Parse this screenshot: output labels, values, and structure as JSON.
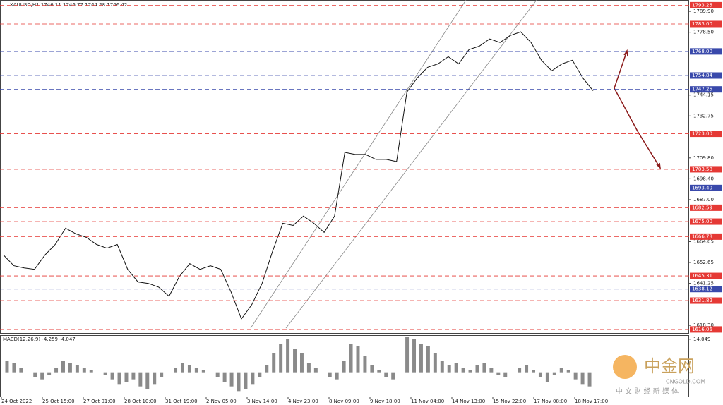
{
  "chart_data": [
    {
      "type": "line",
      "title": "XAUUSD,H1 1746.11 1746.77 1744.28 1746.42",
      "color": "#111111",
      "values": [
        1656.7,
        1650.9,
        1649.7,
        1648.9,
        1656.7,
        1662.5,
        1671.4,
        1668.3,
        1666.4,
        1662.5,
        1660.5,
        1662.5,
        1648.9,
        1642.0,
        1641.2,
        1639.2,
        1634.2,
        1645.0,
        1652.0,
        1648.9,
        1650.9,
        1648.9,
        1636.5,
        1621.8,
        1629.6,
        1641.2,
        1658.6,
        1674.1,
        1672.9,
        1678.0,
        1674.1,
        1669.1,
        1678.0,
        1712.8,
        1711.7,
        1711.7,
        1709.0,
        1709.0,
        1707.8,
        1745.8,
        1753.5,
        1759.3,
        1761.2,
        1765.1,
        1761.2,
        1769.0,
        1770.9,
        1774.8,
        1772.9,
        1776.7,
        1778.7,
        1772.9,
        1763.2,
        1757.4,
        1761.2,
        1763.2,
        1753.5,
        1746.5
      ],
      "time_labels": [
        "24 Oct 2022",
        "25 Oct 15:00",
        "27 Oct 01:00",
        "28 Oct 10:00",
        "31 Oct 19:00",
        "2 Nov 05:00",
        "3 Nov 14:00",
        "4 Nov 23:00",
        "8 Nov 09:00",
        "9 Nov 18:00",
        "11 Nov 04:00",
        "14 Nov 13:00",
        "15 Nov 22:00",
        "17 Nov 08:00",
        "18 Nov 17:00"
      ],
      "ylim": [
        1614.1,
        1796.1
      ],
      "yticks": [
        {
          "value": 1789.9,
          "label": "1789.90"
        },
        {
          "value": 1778.5,
          "label": "1778.50"
        },
        1744.15,
        1732.75,
        {
          "value": 1709.8,
          "label": "1709.80"
        },
        {
          "value": 1698.4,
          "label": "1698.40"
        },
        {
          "value": 1687,
          "label": "1687.00"
        },
        1664.05,
        1652.65,
        1641.25,
        {
          "value": 1618.3,
          "label": "1618.30"
        }
      ],
      "levels": [
        {
          "value": 1793.25,
          "color": "#e53935"
        },
        {
          "value": {
            "value": 1783,
            "label": "1783.00"
          },
          "color": "#e53935"
        },
        {
          "value": {
            "value": 1768,
            "label": "1768.00"
          },
          "color": "#3949ab"
        },
        {
          "value": 1754.84,
          "color": "#3949ab"
        },
        {
          "value": 1747.25,
          "color": "#3949ab"
        },
        {
          "value": {
            "value": 1723,
            "label": "1723.00"
          },
          "color": "#e53935"
        },
        {
          "value": 1703.58,
          "color": "#e53935"
        },
        {
          "value": {
            "value": 1693.4,
            "label": "1693.40"
          },
          "color": "#3949ab"
        },
        {
          "value": 1682.59,
          "color": "#e53935"
        },
        {
          "value": {
            "value": 1675,
            "label": "1675.00"
          },
          "color": "#e53935"
        },
        {
          "value": 1666.78,
          "color": "#e53935"
        },
        {
          "value": 1645.31,
          "color": "#e53935"
        },
        {
          "value": 1638.12,
          "color": "#3949ab"
        },
        {
          "value": 1631.82,
          "color": "#e53935"
        },
        {
          "value": 1616.06,
          "color": "#e53935"
        }
      ]
    },
    {
      "type": "bar",
      "title": "MACD(12,26,9) -4.259 -4.047",
      "color": "#8a8a8a",
      "values": [
        5,
        4,
        2,
        0,
        -2,
        -3,
        -1,
        2,
        5,
        4,
        3,
        2,
        1,
        0,
        -1,
        -3,
        -5,
        -4,
        -3,
        -6,
        -7,
        -5,
        -2,
        0,
        2,
        4,
        3,
        2,
        1,
        0,
        -2,
        -4,
        -6,
        -8,
        -7,
        -5,
        -2,
        3,
        8,
        12,
        14,
        10,
        8,
        4,
        2,
        0,
        -2,
        -3,
        5,
        12,
        11,
        7,
        3,
        1,
        -2,
        -3,
        0,
        15,
        14,
        12,
        11,
        8,
        5,
        3,
        4,
        2,
        1,
        3,
        4,
        2,
        -1,
        -2,
        0,
        2,
        3,
        1,
        -2,
        -4,
        -1,
        2,
        1,
        -3,
        -5,
        -6
      ],
      "ylim": [
        -10.3,
        15.5
      ],
      "yticks": [
        14.049
      ]
    }
  ],
  "watermark": {
    "brand": "中金网",
    "site": "CNGOLD.COM",
    "slogan": "中 文 财 经 新 媒 体"
  }
}
